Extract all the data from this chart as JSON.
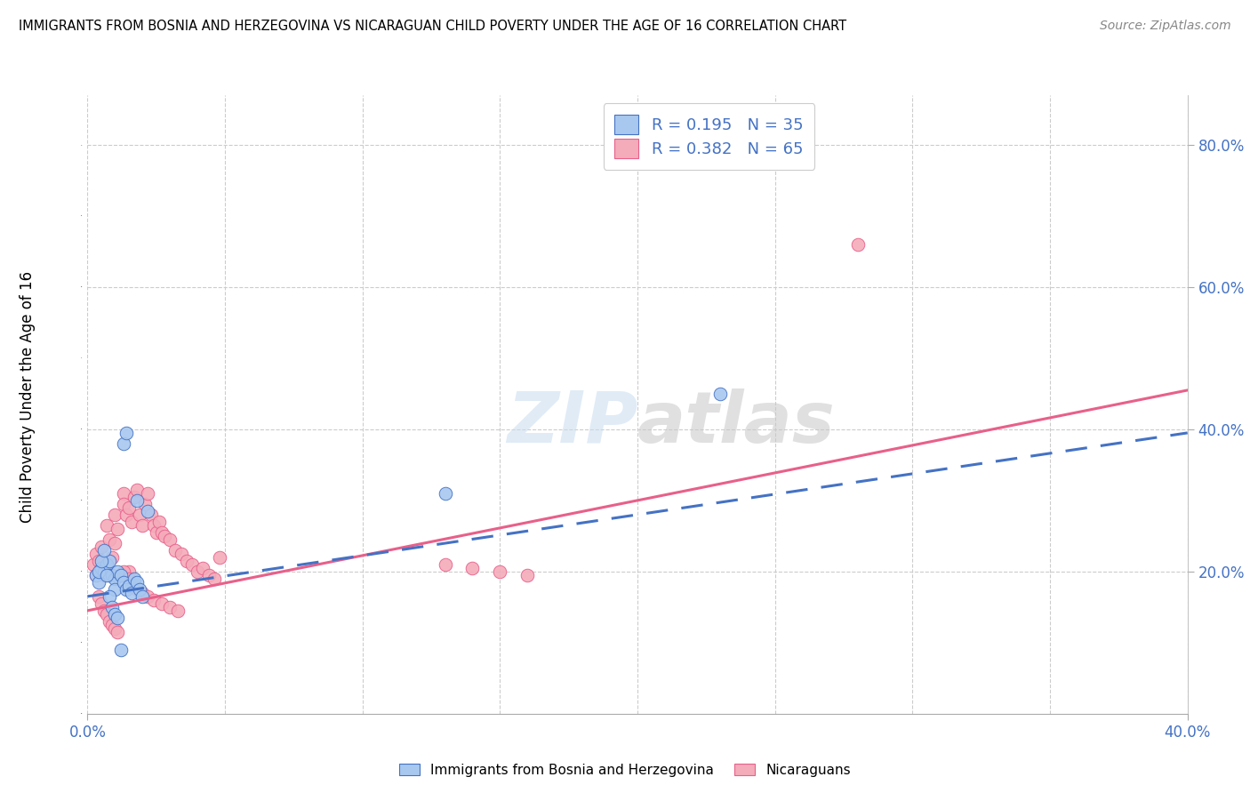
{
  "title": "IMMIGRANTS FROM BOSNIA AND HERZEGOVINA VS NICARAGUAN CHILD POVERTY UNDER THE AGE OF 16 CORRELATION CHART",
  "source": "Source: ZipAtlas.com",
  "ylabel": "Child Poverty Under the Age of 16",
  "ylabel_ticks": [
    "20.0%",
    "40.0%",
    "60.0%",
    "80.0%"
  ],
  "ylabel_tick_vals": [
    0.2,
    0.4,
    0.6,
    0.8
  ],
  "xmin": 0.0,
  "xmax": 0.4,
  "ymin": 0.0,
  "ymax": 0.87,
  "watermark_zip": "ZIP",
  "watermark_atlas": "atlas",
  "legend1_label": "R = 0.195   N = 35",
  "legend2_label": "R = 0.382   N = 65",
  "blue_color": "#A8C8F0",
  "pink_color": "#F4ABBA",
  "blue_line_color": "#4472C4",
  "pink_line_color": "#E8608A",
  "blue_scatter_x": [
    0.003,
    0.004,
    0.005,
    0.006,
    0.007,
    0.008,
    0.008,
    0.009,
    0.01,
    0.01,
    0.011,
    0.012,
    0.013,
    0.014,
    0.015,
    0.016,
    0.017,
    0.018,
    0.019,
    0.02,
    0.004,
    0.005,
    0.006,
    0.007,
    0.008,
    0.009,
    0.01,
    0.011,
    0.012,
    0.013,
    0.014,
    0.018,
    0.022,
    0.13,
    0.23
  ],
  "blue_scatter_y": [
    0.195,
    0.185,
    0.205,
    0.2,
    0.21,
    0.195,
    0.215,
    0.195,
    0.19,
    0.175,
    0.2,
    0.195,
    0.185,
    0.175,
    0.18,
    0.17,
    0.19,
    0.185,
    0.175,
    0.165,
    0.2,
    0.215,
    0.23,
    0.195,
    0.165,
    0.15,
    0.14,
    0.135,
    0.09,
    0.38,
    0.395,
    0.3,
    0.285,
    0.31,
    0.45
  ],
  "pink_scatter_x": [
    0.002,
    0.003,
    0.004,
    0.005,
    0.006,
    0.007,
    0.007,
    0.008,
    0.009,
    0.01,
    0.01,
    0.011,
    0.012,
    0.013,
    0.013,
    0.014,
    0.015,
    0.015,
    0.016,
    0.017,
    0.018,
    0.019,
    0.02,
    0.021,
    0.022,
    0.023,
    0.024,
    0.025,
    0.026,
    0.027,
    0.028,
    0.03,
    0.032,
    0.034,
    0.036,
    0.038,
    0.04,
    0.042,
    0.044,
    0.046,
    0.003,
    0.004,
    0.005,
    0.006,
    0.007,
    0.008,
    0.009,
    0.01,
    0.011,
    0.013,
    0.015,
    0.016,
    0.018,
    0.02,
    0.022,
    0.024,
    0.027,
    0.03,
    0.033,
    0.13,
    0.14,
    0.15,
    0.16,
    0.28,
    0.048
  ],
  "pink_scatter_y": [
    0.21,
    0.225,
    0.215,
    0.235,
    0.195,
    0.205,
    0.265,
    0.245,
    0.22,
    0.24,
    0.28,
    0.26,
    0.195,
    0.31,
    0.295,
    0.28,
    0.2,
    0.29,
    0.27,
    0.305,
    0.315,
    0.28,
    0.265,
    0.295,
    0.31,
    0.28,
    0.265,
    0.255,
    0.27,
    0.255,
    0.25,
    0.245,
    0.23,
    0.225,
    0.215,
    0.21,
    0.2,
    0.205,
    0.195,
    0.19,
    0.195,
    0.165,
    0.155,
    0.145,
    0.14,
    0.13,
    0.125,
    0.12,
    0.115,
    0.2,
    0.19,
    0.18,
    0.175,
    0.17,
    0.165,
    0.16,
    0.155,
    0.15,
    0.145,
    0.21,
    0.205,
    0.2,
    0.195,
    0.66,
    0.22
  ],
  "blue_line_x": [
    0.0,
    0.4
  ],
  "blue_line_y": [
    0.165,
    0.395
  ],
  "pink_line_x": [
    0.0,
    0.4
  ],
  "pink_line_y": [
    0.145,
    0.455
  ],
  "legend_bottom_labels": [
    "Immigrants from Bosnia and Herzegovina",
    "Nicaraguans"
  ]
}
